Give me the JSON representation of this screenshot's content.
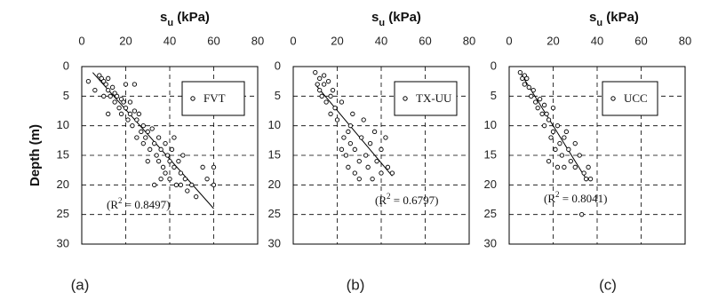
{
  "chart_data": [
    {
      "type": "scatter",
      "title": [
        "s",
        "u",
        " (kPa)"
      ],
      "y_label": "Depth (m)",
      "panel_label": "(a)",
      "legend": "upper right",
      "legend_label": "FVT",
      "annotation": [
        "(R",
        "2",
        " = 0.8497)"
      ],
      "xlim": [
        0,
        80
      ],
      "xticks": [
        0,
        20,
        40,
        60,
        80
      ],
      "ylim": [
        0,
        30
      ],
      "yticks": [
        0,
        5,
        10,
        15,
        20,
        25,
        30
      ],
      "y_inverted": true,
      "grid": true,
      "color": "#000000",
      "x": [
        3,
        6,
        8,
        9,
        10,
        11,
        12,
        12,
        13,
        14,
        15,
        15,
        16,
        17,
        18,
        18,
        19,
        20,
        20,
        21,
        22,
        22,
        23,
        24,
        25,
        25,
        26,
        27,
        28,
        28,
        29,
        30,
        31,
        32,
        33,
        34,
        35,
        35,
        36,
        37,
        38,
        38,
        39,
        40,
        40,
        41,
        42,
        43,
        44,
        45,
        46,
        47,
        48,
        50,
        52,
        55,
        57,
        60,
        60,
        24,
        12,
        10,
        30,
        33,
        36,
        42,
        45
      ],
      "y": [
        2.5,
        4,
        1.5,
        2,
        2.5,
        3,
        2,
        4,
        5,
        3.5,
        4.5,
        6,
        5,
        7,
        5.5,
        8,
        6,
        3,
        7,
        9,
        6,
        8,
        10,
        7.5,
        9,
        12,
        8,
        11,
        10,
        13,
        12,
        11,
        14,
        10.5,
        13,
        15,
        12,
        16,
        14,
        17,
        13,
        18,
        15,
        16,
        19,
        14,
        17,
        20,
        16,
        18,
        15,
        19,
        21,
        20,
        22,
        17,
        19,
        17,
        20,
        3,
        8,
        5,
        16,
        20,
        19,
        12,
        20
      ],
      "trendline": {
        "x": [
          5,
          60
        ],
        "y": [
          1,
          24
        ]
      }
    },
    {
      "type": "scatter",
      "title": [
        "s",
        "u",
        " (kPa)"
      ],
      "panel_label": "(b)",
      "legend": "upper right",
      "legend_label": "TX-UU",
      "annotation": [
        "(R",
        "2",
        " = 0.6797)"
      ],
      "xlim": [
        0,
        80
      ],
      "xticks": [
        0,
        20,
        40,
        60,
        80
      ],
      "ylim": [
        0,
        30
      ],
      "yticks": [
        0,
        5,
        10,
        15,
        20,
        25,
        30
      ],
      "y_inverted": true,
      "grid": true,
      "color": "#000000",
      "x": [
        10,
        11,
        12,
        12,
        13,
        14,
        14,
        15,
        16,
        17,
        17,
        18,
        19,
        20,
        22,
        23,
        24,
        25,
        25,
        26,
        27,
        28,
        28,
        30,
        31,
        32,
        33,
        34,
        35,
        36,
        37,
        38,
        40,
        40,
        42,
        43,
        45,
        30,
        22,
        26
      ],
      "y": [
        1,
        3,
        2,
        4,
        5,
        1.5,
        3,
        6,
        2.5,
        5,
        8,
        4,
        7,
        9,
        6,
        12,
        15,
        11,
        17,
        13,
        8,
        14,
        18,
        16,
        12,
        9,
        15,
        17,
        13,
        19,
        11,
        16,
        14,
        18,
        12,
        17,
        18,
        19,
        14,
        10
      ],
      "trendline": {
        "x": [
          10,
          45
        ],
        "y": [
          3,
          18.5
        ]
      }
    },
    {
      "type": "scatter",
      "title": [
        "s",
        "u",
        " (kPa)"
      ],
      "panel_label": "(c)",
      "legend": "upper right",
      "legend_label": "UCC",
      "annotation": [
        "(R",
        "2",
        " = 0.8041)"
      ],
      "xlim": [
        0,
        80
      ],
      "xticks": [
        0,
        20,
        40,
        60,
        80
      ],
      "ylim": [
        0,
        30
      ],
      "yticks": [
        0,
        5,
        10,
        15,
        20,
        25,
        30
      ],
      "y_inverted": true,
      "grid": true,
      "color": "#000000",
      "x": [
        5,
        6,
        7,
        7,
        8,
        9,
        10,
        11,
        12,
        13,
        14,
        15,
        16,
        16,
        17,
        18,
        19,
        20,
        20,
        21,
        22,
        23,
        24,
        25,
        25,
        26,
        27,
        28,
        30,
        30,
        32,
        34,
        35,
        36,
        37,
        33,
        18,
        22
      ],
      "y": [
        1,
        2,
        1.5,
        3,
        2,
        3.5,
        5,
        4,
        6,
        7,
        5.5,
        8,
        6.5,
        10,
        8,
        9,
        12,
        7,
        11,
        14,
        10,
        13,
        15,
        12,
        17,
        11,
        14,
        16,
        13,
        17,
        15,
        18,
        19,
        17,
        19,
        25,
        16,
        17
      ],
      "trendline": {
        "x": [
          5,
          35
        ],
        "y": [
          1,
          19
        ]
      }
    }
  ]
}
